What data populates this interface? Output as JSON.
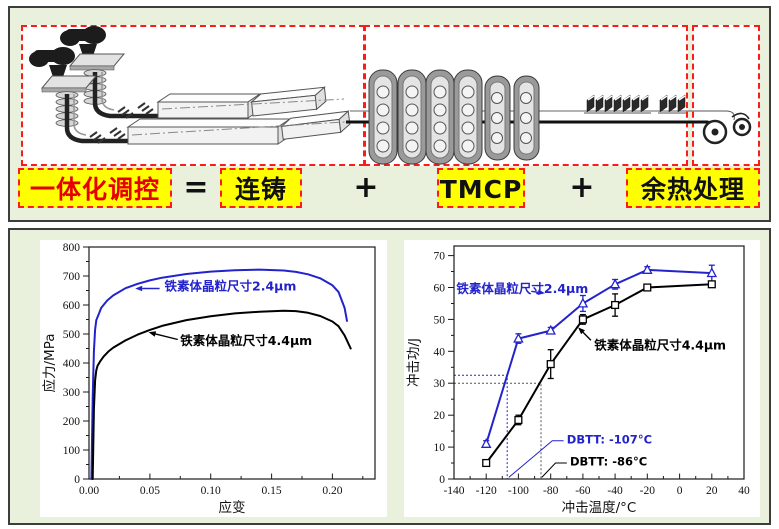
{
  "top_panel": {
    "equation": {
      "integrated": "一体化调控",
      "equals": "=",
      "casting": "连铸",
      "plus1": "+",
      "tmcp": "TMCP",
      "plus2": "+",
      "reheat": "余热处理"
    },
    "colors": {
      "label_bg": "#ffff00",
      "label_border": "#ff1a1a",
      "integrated_text": "#e60000",
      "panel_bg": "#e9f1dd"
    }
  },
  "chart_data": [
    {
      "name": "stress-strain-chart",
      "type": "line",
      "title": "",
      "xlabel": "应变",
      "ylabel": "应力/MPa",
      "xlim": [
        0,
        0.235
      ],
      "ylim": [
        0,
        800
      ],
      "grid": false,
      "frame": true,
      "size": [
        347,
        277
      ],
      "margins": {
        "l": 49,
        "r": 12,
        "t": 7,
        "b": 38
      },
      "xticks": {
        "values": [
          0,
          0.05,
          0.1,
          0.15,
          0.2
        ],
        "labels": [
          "0.00",
          "0.05",
          "0.10",
          "0.15",
          "0.20"
        ],
        "minor": 0.025
      },
      "yticks": {
        "values": [
          0,
          100,
          200,
          300,
          400,
          500,
          600,
          700,
          800
        ],
        "labels": [
          "0",
          "100",
          "200",
          "300",
          "400",
          "500",
          "600",
          "700",
          "800"
        ],
        "minor": 50
      },
      "series": [
        {
          "name": "铁素体晶粒尺寸2.4μm",
          "color": "#2323cc",
          "marker": "none",
          "points": [
            [
              0.002,
              0
            ],
            [
              0.003,
              280
            ],
            [
              0.004,
              440
            ],
            [
              0.005,
              515
            ],
            [
              0.006,
              548
            ],
            [
              0.008,
              568
            ],
            [
              0.01,
              590
            ],
            [
              0.015,
              616
            ],
            [
              0.02,
              633
            ],
            [
              0.03,
              658
            ],
            [
              0.04,
              673
            ],
            [
              0.05,
              685
            ],
            [
              0.06,
              694
            ],
            [
              0.08,
              707
            ],
            [
              0.1,
              715
            ],
            [
              0.12,
              720
            ],
            [
              0.14,
              722
            ],
            [
              0.16,
              719
            ],
            [
              0.17,
              714
            ],
            [
              0.18,
              706
            ],
            [
              0.19,
              692
            ],
            [
              0.2,
              668
            ],
            [
              0.205,
              645
            ],
            [
              0.21,
              590
            ],
            [
              0.212,
              545
            ]
          ]
        },
        {
          "name": "铁素体晶粒尺寸4.4μm",
          "color": "#000000",
          "marker": "none",
          "points": [
            [
              0.003,
              0
            ],
            [
              0.004,
              240
            ],
            [
              0.005,
              340
            ],
            [
              0.006,
              375
            ],
            [
              0.007,
              390
            ],
            [
              0.009,
              405
            ],
            [
              0.012,
              422
            ],
            [
              0.016,
              440
            ],
            [
              0.02,
              453
            ],
            [
              0.03,
              478
            ],
            [
              0.04,
              498
            ],
            [
              0.05,
              514
            ],
            [
              0.06,
              528
            ],
            [
              0.08,
              548
            ],
            [
              0.1,
              561
            ],
            [
              0.12,
              571
            ],
            [
              0.14,
              577
            ],
            [
              0.16,
              580
            ],
            [
              0.17,
              579
            ],
            [
              0.18,
              573
            ],
            [
              0.19,
              562
            ],
            [
              0.2,
              543
            ],
            [
              0.205,
              527
            ],
            [
              0.21,
              495
            ],
            [
              0.215,
              450
            ]
          ]
        }
      ],
      "annotations": [
        {
          "text": "铁素体晶粒尺寸2.4μm",
          "color": "#2323cc",
          "x": 0.062,
          "y": 650,
          "anchor": "start",
          "bold": true,
          "size": 12.5,
          "arrow": {
            "from": [
              0.058,
              657
            ],
            "to": [
              0.038,
              657
            ]
          }
        },
        {
          "text": "铁素体晶粒尺寸4.4μm",
          "color": "#000000",
          "x": 0.075,
          "y": 462,
          "anchor": "start",
          "bold": true,
          "size": 12.5,
          "arrow": {
            "from": [
              0.073,
              481
            ],
            "to": [
              0.049,
              506
            ]
          }
        }
      ]
    },
    {
      "name": "impact-energy-chart",
      "type": "line",
      "title": "",
      "xlabel": "冲击温度/°C",
      "ylabel": "冲击功/J",
      "xlim": [
        -140,
        40
      ],
      "ylim": [
        0,
        73
      ],
      "grid": false,
      "frame": true,
      "size": [
        356,
        277
      ],
      "margins": {
        "l": 50,
        "r": 16,
        "t": 6,
        "b": 38
      },
      "xticks": {
        "values": [
          -140,
          -120,
          -100,
          -80,
          -60,
          -40,
          -20,
          0,
          20,
          40
        ],
        "labels": [
          "-140",
          "-120",
          "-100",
          "-80",
          "-60",
          "-40",
          "-20",
          "0",
          "20",
          "40"
        ],
        "minor": 10
      },
      "yticks": {
        "values": [
          0,
          10,
          20,
          30,
          40,
          50,
          60,
          70
        ],
        "labels": [
          "0",
          "10",
          "20",
          "30",
          "40",
          "50",
          "60",
          "70"
        ],
        "minor": 5
      },
      "series": [
        {
          "name": "铁素体晶粒尺寸2.4μm",
          "color": "#2323cc",
          "marker": "triangle",
          "x": [
            -120,
            -100,
            -80,
            -60,
            -40,
            -20,
            20
          ],
          "y": [
            11,
            44,
            46.5,
            55,
            61,
            65.5,
            64.5
          ],
          "err": [
            1,
            1.5,
            1,
            2.5,
            1.5,
            1,
            2.5
          ]
        },
        {
          "name": "铁素体晶粒尺寸4.4μm",
          "color": "#000000",
          "marker": "square",
          "x": [
            -120,
            -100,
            -80,
            -60,
            -40,
            -20,
            20
          ],
          "y": [
            5,
            18.5,
            36,
            50,
            54.5,
            60,
            61
          ],
          "err": [
            1,
            1.5,
            4.5,
            1.5,
            3.5,
            0.8,
            0.8
          ]
        }
      ],
      "guides": [
        {
          "color": "#2323cc",
          "dash": "2,2",
          "points": [
            [
              -140,
              32.5
            ],
            [
              -107,
              32.5
            ],
            [
              -107,
              0
            ]
          ]
        },
        {
          "color": "#555555",
          "dash": "2,2",
          "points": [
            [
              -140,
              30
            ],
            [
              -86,
              30
            ],
            [
              -86,
              0
            ]
          ]
        }
      ],
      "annotations": [
        {
          "text": "铁素体晶粒尺寸2.4μm",
          "color": "#2323cc",
          "x": -138.5,
          "y": 58.2,
          "anchor": "start",
          "bold": true,
          "size": 12.5,
          "arrow": {
            "from": [
              -92,
              58.8
            ],
            "to": [
              -83.5,
              58.2
            ]
          }
        },
        {
          "text": "铁素体晶粒尺寸4.4μm",
          "color": "#000000",
          "x": -53,
          "y": 40.5,
          "anchor": "start",
          "bold": true,
          "size": 12.5,
          "arrow": {
            "from": [
              -55,
              43.5
            ],
            "to": [
              -63,
              47.5
            ]
          }
        },
        {
          "text": "DBTT: -107°C",
          "color": "#2323cc",
          "x": -70,
          "y": 11.2,
          "anchor": "start",
          "bold": true,
          "size": 11.5,
          "leader": [
            [
              -72,
              12
            ],
            [
              -79,
              12
            ],
            [
              -106,
              0.5
            ]
          ]
        },
        {
          "text": "DBTT: -86°C",
          "color": "#000000",
          "x": -68,
          "y": 4.2,
          "anchor": "start",
          "bold": true,
          "size": 11.5,
          "leader": [
            [
              -70,
              5
            ],
            [
              -77,
              5
            ],
            [
              -85.5,
              0.5
            ]
          ]
        }
      ]
    }
  ]
}
